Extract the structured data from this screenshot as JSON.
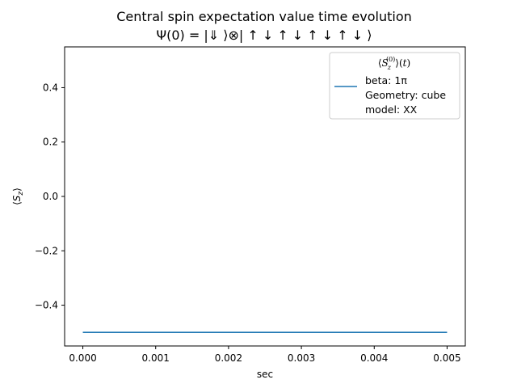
{
  "chart_data": {
    "type": "line",
    "title": "Central spin expectation value time evolution",
    "subtitle": "Ψ(0) = |⇓ ⟩⊗| ↑ ↓ ↑ ↓ ↑ ↓ ↑ ↓ ⟩",
    "xlabel": "sec",
    "ylabel": "⟨S_z⟩",
    "xlim": [
      -0.00025,
      0.00525
    ],
    "ylim": [
      -0.55,
      0.55
    ],
    "x_ticks": [
      0.0,
      0.001,
      0.002,
      0.003,
      0.004,
      0.005
    ],
    "x_tick_labels": [
      "0.000",
      "0.001",
      "0.002",
      "0.003",
      "0.004",
      "0.005"
    ],
    "y_ticks": [
      -0.4,
      -0.2,
      0.0,
      0.2,
      0.4
    ],
    "y_tick_labels": [
      "−0.4",
      "−0.2",
      "0.0",
      "0.2",
      "0.4"
    ],
    "grid": false,
    "legend": {
      "placement": "top-right",
      "title": "⟨S_z^(0)⟩(t)",
      "entries": [
        "beta: 1π",
        "Geometry: cube",
        "model: XX"
      ]
    },
    "series": [
      {
        "name": "beta: 1π",
        "color": "#1f77b4",
        "x": [
          0.0,
          0.001,
          0.002,
          0.003,
          0.004,
          0.005
        ],
        "y": [
          -0.5,
          -0.5,
          -0.5,
          -0.5,
          -0.5,
          -0.5
        ]
      }
    ]
  }
}
